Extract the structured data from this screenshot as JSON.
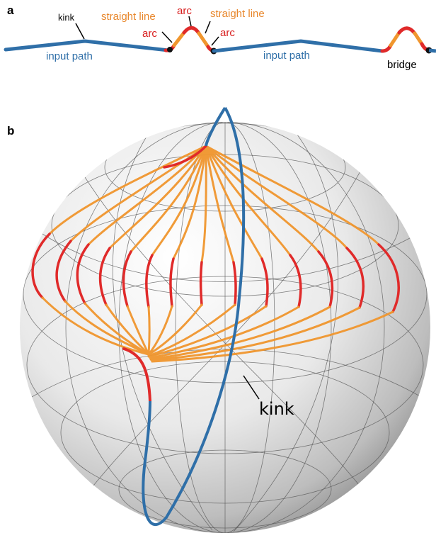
{
  "panel_a": {
    "letter": "a",
    "labels": {
      "kink": "kink",
      "input_path_1": "input path",
      "input_path_2": "input path",
      "straight_line_1": "straight line",
      "straight_line_2": "straight line",
      "arc_1": "arc",
      "arc_2": "arc",
      "arc_3": "arc",
      "bridge": "bridge"
    }
  },
  "panel_b": {
    "letter": "b",
    "labels": {
      "kink": "kink"
    }
  },
  "colors": {
    "input_path": "#2f6fa8",
    "straight_line": "#f0962e",
    "arc": "#e02a2a",
    "label_input": "#2f6fa8",
    "label_straight": "#e8862a",
    "label_arc": "#d81e1e",
    "label_plain": "#000000"
  }
}
